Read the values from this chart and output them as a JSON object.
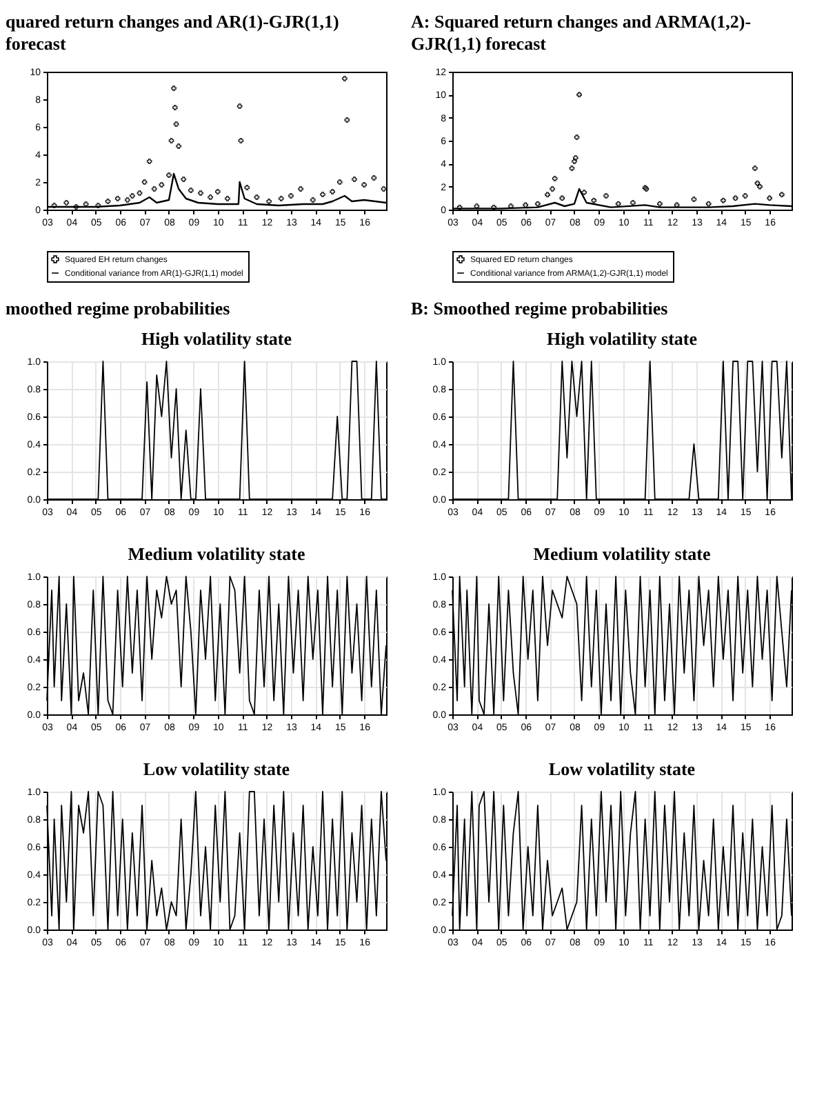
{
  "chart_data": [
    {
      "type": "line",
      "title": "quared return changes and AR(1)-GJR(1,1) forecast",
      "xlim": [
        2003,
        2016.9
      ],
      "xticks": [
        {
          "value": 2003,
          "label": "03"
        },
        {
          "value": 2004,
          "label": "04"
        },
        {
          "value": 2005,
          "label": "05"
        },
        {
          "value": 2006,
          "label": "06"
        },
        {
          "value": 2007,
          "label": "07"
        },
        {
          "value": 2008,
          "label": "08"
        },
        {
          "value": 2009,
          "label": "09"
        },
        {
          "value": 2010,
          "label": "10"
        },
        {
          "value": 2011,
          "label": "11"
        },
        {
          "value": 2012,
          "label": "12"
        },
        {
          "value": 2013,
          "label": "13"
        },
        {
          "value": 2014,
          "label": "14"
        },
        {
          "value": 2015,
          "label": "15"
        },
        {
          "value": 2016,
          "label": "16"
        }
      ],
      "ylim": [
        0,
        10
      ],
      "yticks": [
        0,
        2,
        4,
        6,
        8,
        10
      ],
      "legend": "bottom",
      "series": [
        {
          "name": "Squared EH return changes",
          "type": "scatter",
          "marker": "cross",
          "color": "#000000",
          "x": [
            2003.3,
            2003.8,
            2004.2,
            2004.6,
            2005.1,
            2005.5,
            2005.9,
            2006.3,
            2006.5,
            2006.8,
            2007.0,
            2007.2,
            2007.4,
            2007.7,
            2008.0,
            2008.1,
            2008.2,
            2008.25,
            2008.3,
            2008.4,
            2008.6,
            2008.9,
            2009.3,
            2009.7,
            2010.0,
            2010.4,
            2010.9,
            2010.95,
            2011.2,
            2011.6,
            2012.1,
            2012.6,
            2013.0,
            2013.4,
            2013.9,
            2014.3,
            2014.7,
            2015.0,
            2015.2,
            2015.3,
            2015.6,
            2016.0,
            2016.4,
            2016.8
          ],
          "values": [
            0.3,
            0.5,
            0.2,
            0.4,
            0.3,
            0.6,
            0.8,
            0.7,
            1.0,
            1.2,
            2.0,
            3.5,
            1.5,
            1.8,
            2.5,
            5.0,
            8.8,
            7.4,
            6.2,
            4.6,
            2.2,
            1.4,
            1.2,
            0.9,
            1.3,
            0.8,
            7.5,
            5.0,
            1.6,
            0.9,
            0.6,
            0.8,
            1.0,
            1.5,
            0.7,
            1.1,
            1.3,
            2.0,
            9.5,
            6.5,
            2.2,
            1.8,
            2.3,
            1.5
          ]
        },
        {
          "name": "Conditional variance from AR(1)-GJR(1,1) model",
          "type": "line",
          "color": "#000000",
          "x": [
            2003.0,
            2004.0,
            2005.0,
            2006.0,
            2006.8,
            2007.2,
            2007.5,
            2008.0,
            2008.2,
            2008.4,
            2008.7,
            2009.2,
            2010.0,
            2010.85,
            2010.9,
            2011.1,
            2011.6,
            2012.5,
            2013.5,
            2014.3,
            2014.7,
            2015.2,
            2015.5,
            2016.0,
            2016.9
          ],
          "values": [
            0.2,
            0.2,
            0.2,
            0.3,
            0.5,
            0.9,
            0.5,
            0.7,
            2.6,
            1.5,
            0.8,
            0.5,
            0.4,
            0.4,
            2.0,
            0.8,
            0.4,
            0.3,
            0.4,
            0.4,
            0.6,
            1.0,
            0.6,
            0.7,
            0.5
          ]
        }
      ]
    },
    {
      "type": "line",
      "title": "moothed regime probabilities",
      "subtitle": "High volatility state",
      "xlim": [
        2003,
        2016.9
      ],
      "xticks": [
        {
          "value": 2003,
          "label": "03"
        },
        {
          "value": 2004,
          "label": "04"
        },
        {
          "value": 2005,
          "label": "05"
        },
        {
          "value": 2006,
          "label": "06"
        },
        {
          "value": 2007,
          "label": "07"
        },
        {
          "value": 2008,
          "label": "08"
        },
        {
          "value": 2009,
          "label": "09"
        },
        {
          "value": 2010,
          "label": "10"
        },
        {
          "value": 2011,
          "label": "11"
        },
        {
          "value": 2012,
          "label": "12"
        },
        {
          "value": 2013,
          "label": "13"
        },
        {
          "value": 2014,
          "label": "14"
        },
        {
          "value": 2015,
          "label": "15"
        },
        {
          "value": 2016,
          "label": "16"
        }
      ],
      "ylim": [
        0,
        1
      ],
      "yticks": [
        {
          "value": 0,
          "label": "0.0"
        },
        {
          "value": 0.2,
          "label": "0.2"
        },
        {
          "value": 0.4,
          "label": "0.4"
        },
        {
          "value": 0.6,
          "label": "0.6"
        },
        {
          "value": 0.8,
          "label": "0.8"
        },
        {
          "value": 1,
          "label": "1.0"
        }
      ],
      "grid": true,
      "color": "#000000",
      "x": [
        2003.0,
        2003.2,
        2003.3,
        2003.5,
        2003.6,
        2003.8,
        2004.0,
        2004.1,
        2004.3,
        2004.5,
        2004.7,
        2004.9,
        2005.1,
        2005.3,
        2005.5,
        2005.7,
        2005.9,
        2006.1,
        2006.3,
        2006.5,
        2006.7,
        2006.9,
        2007.1,
        2007.3,
        2007.5,
        2007.7,
        2007.9,
        2008.1,
        2008.3,
        2008.5,
        2008.7,
        2008.9,
        2009.1,
        2009.3,
        2009.5,
        2009.7,
        2009.9,
        2010.1,
        2010.3,
        2010.5,
        2010.7,
        2010.9,
        2011.1,
        2011.3,
        2011.5,
        2011.7,
        2011.9,
        2012.1,
        2012.3,
        2012.5,
        2012.7,
        2012.9,
        2013.1,
        2013.3,
        2013.5,
        2013.7,
        2013.9,
        2014.1,
        2014.3,
        2014.5,
        2014.7,
        2014.9,
        2015.1,
        2015.3,
        2015.5,
        2015.7,
        2015.9,
        2016.1,
        2016.3,
        2016.5,
        2016.7,
        2016.9
      ],
      "values": [
        0,
        0,
        0,
        0,
        0,
        0,
        0,
        0,
        0,
        0,
        0,
        0,
        0,
        1.0,
        0,
        0,
        0,
        0,
        0,
        0,
        0,
        0,
        0.85,
        0,
        0.9,
        0.6,
        1.0,
        0.3,
        0.8,
        0,
        0.5,
        0,
        0,
        0.8,
        0,
        0,
        0,
        0,
        0,
        0,
        0,
        0,
        1.0,
        0,
        0,
        0,
        0,
        0,
        0,
        0,
        0,
        0,
        0,
        0,
        0,
        0,
        0,
        0,
        0,
        0,
        0,
        0.6,
        0,
        0,
        1.0,
        1.0,
        0,
        0,
        0,
        1.0,
        0,
        0
      ]
    },
    {
      "type": "line",
      "title": "Medium volatility state",
      "xlim": [
        2003,
        2016.9
      ],
      "xticks": [
        {
          "value": 2003,
          "label": "03"
        },
        {
          "value": 2004,
          "label": "04"
        },
        {
          "value": 2005,
          "label": "05"
        },
        {
          "value": 2006,
          "label": "06"
        },
        {
          "value": 2007,
          "label": "07"
        },
        {
          "value": 2008,
          "label": "08"
        },
        {
          "value": 2009,
          "label": "09"
        },
        {
          "value": 2010,
          "label": "10"
        },
        {
          "value": 2011,
          "label": "11"
        },
        {
          "value": 2012,
          "label": "12"
        },
        {
          "value": 2013,
          "label": "13"
        },
        {
          "value": 2014,
          "label": "14"
        },
        {
          "value": 2015,
          "label": "15"
        },
        {
          "value": 2016,
          "label": "16"
        }
      ],
      "ylim": [
        0,
        1
      ],
      "yticks": [
        {
          "value": 0,
          "label": "0.0"
        },
        {
          "value": 0.2,
          "label": "0.2"
        },
        {
          "value": 0.4,
          "label": "0.4"
        },
        {
          "value": 0.6,
          "label": "0.6"
        },
        {
          "value": 0.8,
          "label": "0.8"
        },
        {
          "value": 1,
          "label": "1.0"
        }
      ],
      "grid": true,
      "color": "#000000",
      "x": [
        2003.0,
        2003.2,
        2003.3,
        2003.5,
        2003.6,
        2003.8,
        2004.0,
        2004.1,
        2004.3,
        2004.5,
        2004.7,
        2004.9,
        2005.1,
        2005.3,
        2005.5,
        2005.7,
        2005.9,
        2006.1,
        2006.3,
        2006.5,
        2006.7,
        2006.9,
        2007.1,
        2007.3,
        2007.5,
        2007.7,
        2007.9,
        2008.1,
        2008.3,
        2008.5,
        2008.7,
        2008.9,
        2009.1,
        2009.3,
        2009.5,
        2009.7,
        2009.9,
        2010.1,
        2010.3,
        2010.5,
        2010.7,
        2010.9,
        2011.1,
        2011.3,
        2011.5,
        2011.7,
        2011.9,
        2012.1,
        2012.3,
        2012.5,
        2012.7,
        2012.9,
        2013.1,
        2013.3,
        2013.5,
        2013.7,
        2013.9,
        2014.1,
        2014.3,
        2014.5,
        2014.7,
        2014.9,
        2015.1,
        2015.3,
        2015.5,
        2015.7,
        2015.9,
        2016.1,
        2016.3,
        2016.5,
        2016.7,
        2016.9
      ],
      "values": [
        0.1,
        0.9,
        0.2,
        1.0,
        0.1,
        0.8,
        0,
        1.0,
        0.1,
        0.3,
        0,
        0.9,
        0,
        1.0,
        0.1,
        0,
        0.9,
        0.2,
        1.0,
        0.3,
        0.9,
        0.1,
        1.0,
        0.4,
        0.9,
        0.7,
        1.0,
        0.8,
        0.9,
        0.2,
        1.0,
        0.6,
        0,
        0.9,
        0.4,
        1.0,
        0.1,
        0.8,
        0,
        1.0,
        0.9,
        0.3,
        1.0,
        0.1,
        0,
        0.9,
        0.2,
        1.0,
        0.1,
        0.8,
        0,
        1.0,
        0.3,
        0.9,
        0.1,
        1.0,
        0.4,
        0.9,
        0,
        1.0,
        0.2,
        0.9,
        0,
        1.0,
        0.3,
        0.8,
        0.1,
        1.0,
        0.2,
        0.9,
        0,
        0.5
      ]
    },
    {
      "type": "line",
      "title": "Low volatility state",
      "xlim": [
        2003,
        2016.9
      ],
      "xticks": [
        {
          "value": 2003,
          "label": "03"
        },
        {
          "value": 2004,
          "label": "04"
        },
        {
          "value": 2005,
          "label": "05"
        },
        {
          "value": 2006,
          "label": "06"
        },
        {
          "value": 2007,
          "label": "07"
        },
        {
          "value": 2008,
          "label": "08"
        },
        {
          "value": 2009,
          "label": "09"
        },
        {
          "value": 2010,
          "label": "10"
        },
        {
          "value": 2011,
          "label": "11"
        },
        {
          "value": 2012,
          "label": "12"
        },
        {
          "value": 2013,
          "label": "13"
        },
        {
          "value": 2014,
          "label": "14"
        },
        {
          "value": 2015,
          "label": "15"
        },
        {
          "value": 2016,
          "label": "16"
        }
      ],
      "ylim": [
        0,
        1
      ],
      "yticks": [
        {
          "value": 0,
          "label": "0.0"
        },
        {
          "value": 0.2,
          "label": "0.2"
        },
        {
          "value": 0.4,
          "label": "0.4"
        },
        {
          "value": 0.6,
          "label": "0.6"
        },
        {
          "value": 0.8,
          "label": "0.8"
        },
        {
          "value": 1,
          "label": "1.0"
        }
      ],
      "grid": true,
      "color": "#000000",
      "x": [
        2003.0,
        2003.2,
        2003.3,
        2003.5,
        2003.6,
        2003.8,
        2004.0,
        2004.1,
        2004.3,
        2004.5,
        2004.7,
        2004.9,
        2005.1,
        2005.3,
        2005.5,
        2005.7,
        2005.9,
        2006.1,
        2006.3,
        2006.5,
        2006.7,
        2006.9,
        2007.1,
        2007.3,
        2007.5,
        2007.7,
        2007.9,
        2008.1,
        2008.3,
        2008.5,
        2008.7,
        2008.9,
        2009.1,
        2009.3,
        2009.5,
        2009.7,
        2009.9,
        2010.1,
        2010.3,
        2010.5,
        2010.7,
        2010.9,
        2011.1,
        2011.3,
        2011.5,
        2011.7,
        2011.9,
        2012.1,
        2012.3,
        2012.5,
        2012.7,
        2012.9,
        2013.1,
        2013.3,
        2013.5,
        2013.7,
        2013.9,
        2014.1,
        2014.3,
        2014.5,
        2014.7,
        2014.9,
        2015.1,
        2015.3,
        2015.5,
        2015.7,
        2015.9,
        2016.1,
        2016.3,
        2016.5,
        2016.7,
        2016.9
      ],
      "values": [
        0.9,
        0.1,
        0.8,
        0,
        0.9,
        0.2,
        1.0,
        0,
        0.9,
        0.7,
        1.0,
        0.1,
        1.0,
        0.9,
        0,
        1.0,
        0.1,
        0.8,
        0,
        0.7,
        0.1,
        0.9,
        0,
        0.5,
        0.1,
        0.3,
        0,
        0.2,
        0.1,
        0.8,
        0,
        0.4,
        1.0,
        0.1,
        0.6,
        0,
        0.9,
        0.2,
        1.0,
        0,
        0.1,
        0.7,
        0,
        1.0,
        1.0,
        0.1,
        0.8,
        0,
        0.9,
        0.2,
        1.0,
        0,
        0.7,
        0.1,
        0.9,
        0,
        0.6,
        0.1,
        1.0,
        0,
        0.8,
        0.1,
        1.0,
        0,
        0.7,
        0.2,
        0.9,
        0,
        0.8,
        0.1,
        1.0,
        0.5
      ]
    },
    {
      "type": "line",
      "title": "A: Squared return changes and ARMA(1,2)-GJR(1,1) forecast",
      "xlim": [
        2003,
        2016.9
      ],
      "xticks": [
        {
          "value": 2003,
          "label": "03"
        },
        {
          "value": 2004,
          "label": "04"
        },
        {
          "value": 2005,
          "label": "05"
        },
        {
          "value": 2006,
          "label": "06"
        },
        {
          "value": 2007,
          "label": "07"
        },
        {
          "value": 2008,
          "label": "08"
        },
        {
          "value": 2009,
          "label": "09"
        },
        {
          "value": 2010,
          "label": "10"
        },
        {
          "value": 2011,
          "label": "11"
        },
        {
          "value": 2012,
          "label": "12"
        },
        {
          "value": 2013,
          "label": "13"
        },
        {
          "value": 2014,
          "label": "14"
        },
        {
          "value": 2015,
          "label": "15"
        },
        {
          "value": 2016,
          "label": "16"
        }
      ],
      "ylim": [
        0,
        12
      ],
      "yticks": [
        0,
        2,
        4,
        6,
        8,
        10,
        12
      ],
      "legend": "bottom",
      "series": [
        {
          "name": "Squared ED return changes",
          "type": "scatter",
          "marker": "cross",
          "color": "#000000",
          "x": [
            2003.3,
            2004.0,
            2004.7,
            2005.4,
            2006.0,
            2006.5,
            2006.9,
            2007.1,
            2007.2,
            2007.5,
            2007.9,
            2008.0,
            2008.05,
            2008.1,
            2008.2,
            2008.4,
            2008.8,
            2009.3,
            2009.8,
            2010.4,
            2010.9,
            2010.95,
            2011.5,
            2012.2,
            2012.9,
            2013.5,
            2014.1,
            2014.6,
            2015.0,
            2015.4,
            2015.5,
            2015.6,
            2016.0,
            2016.5
          ],
          "values": [
            0.2,
            0.3,
            0.2,
            0.3,
            0.4,
            0.5,
            1.3,
            1.8,
            2.7,
            1.0,
            3.6,
            4.2,
            4.5,
            6.3,
            10.0,
            1.5,
            0.8,
            1.2,
            0.5,
            0.6,
            1.9,
            1.8,
            0.5,
            0.4,
            0.9,
            0.5,
            0.8,
            1.0,
            1.2,
            3.6,
            2.3,
            2.0,
            1.0,
            1.3
          ]
        },
        {
          "name": "Conditional variance from ARMA(1,2)-GJR(1,1) model",
          "type": "line",
          "color": "#000000",
          "x": [
            2003.0,
            2005.0,
            2006.5,
            2007.2,
            2007.6,
            2008.0,
            2008.2,
            2008.5,
            2009.5,
            2010.9,
            2011.5,
            2013.5,
            2014.5,
            2015.4,
            2016.0,
            2016.9
          ],
          "values": [
            0.1,
            0.1,
            0.2,
            0.6,
            0.3,
            0.5,
            1.8,
            0.6,
            0.2,
            0.4,
            0.2,
            0.2,
            0.3,
            0.5,
            0.4,
            0.3
          ]
        }
      ]
    },
    {
      "type": "line",
      "title": "B: Smoothed regime probabilities",
      "subtitle": "High volatility state",
      "xlim": [
        2003,
        2016.9
      ],
      "xticks": [
        {
          "value": 2003,
          "label": "03"
        },
        {
          "value": 2004,
          "label": "04"
        },
        {
          "value": 2005,
          "label": "05"
        },
        {
          "value": 2006,
          "label": "06"
        },
        {
          "value": 2007,
          "label": "07"
        },
        {
          "value": 2008,
          "label": "08"
        },
        {
          "value": 2009,
          "label": "09"
        },
        {
          "value": 2010,
          "label": "10"
        },
        {
          "value": 2011,
          "label": "11"
        },
        {
          "value": 2012,
          "label": "12"
        },
        {
          "value": 2013,
          "label": "13"
        },
        {
          "value": 2014,
          "label": "14"
        },
        {
          "value": 2015,
          "label": "15"
        },
        {
          "value": 2016,
          "label": "16"
        }
      ],
      "ylim": [
        0,
        1
      ],
      "yticks": [
        {
          "value": 0,
          "label": "0.0"
        },
        {
          "value": 0.2,
          "label": "0.2"
        },
        {
          "value": 0.4,
          "label": "0.4"
        },
        {
          "value": 0.6,
          "label": "0.6"
        },
        {
          "value": 0.8,
          "label": "0.8"
        },
        {
          "value": 1,
          "label": "1.0"
        }
      ],
      "grid": true,
      "color": "#000000",
      "x": [
        2003.0,
        2003.2,
        2003.3,
        2003.5,
        2003.6,
        2003.8,
        2004.0,
        2004.1,
        2004.3,
        2004.5,
        2004.7,
        2004.9,
        2005.1,
        2005.3,
        2005.5,
        2005.7,
        2005.9,
        2006.1,
        2006.3,
        2006.5,
        2006.7,
        2006.9,
        2007.1,
        2007.3,
        2007.5,
        2007.7,
        2007.9,
        2008.1,
        2008.3,
        2008.5,
        2008.7,
        2008.9,
        2009.1,
        2009.3,
        2009.5,
        2009.7,
        2009.9,
        2010.1,
        2010.3,
        2010.5,
        2010.7,
        2010.9,
        2011.1,
        2011.3,
        2011.5,
        2011.7,
        2011.9,
        2012.1,
        2012.3,
        2012.5,
        2012.7,
        2012.9,
        2013.1,
        2013.3,
        2013.5,
        2013.7,
        2013.9,
        2014.1,
        2014.3,
        2014.5,
        2014.7,
        2014.9,
        2015.1,
        2015.3,
        2015.5,
        2015.7,
        2015.9,
        2016.1,
        2016.3,
        2016.5,
        2016.7,
        2016.9
      ],
      "values": [
        0,
        0,
        0,
        0,
        0,
        0,
        0,
        0,
        0,
        0,
        0,
        0,
        0,
        0,
        1.0,
        0,
        0,
        0,
        0,
        0,
        0,
        0,
        0,
        0,
        1.0,
        0.3,
        1.0,
        0.6,
        1.0,
        0,
        1.0,
        0,
        0,
        0,
        0,
        0,
        0,
        0,
        0,
        0,
        0,
        0,
        1.0,
        0,
        0,
        0,
        0,
        0,
        0,
        0,
        0,
        0.4,
        0,
        0,
        0,
        0,
        0,
        1.0,
        0,
        1.0,
        1.0,
        0,
        1.0,
        1.0,
        0.2,
        1.0,
        0,
        1.0,
        1.0,
        0.3,
        1.0,
        0
      ]
    },
    {
      "type": "line",
      "title": "Medium volatility state",
      "xlim": [
        2003,
        2016.9
      ],
      "xticks": [
        {
          "value": 2003,
          "label": "03"
        },
        {
          "value": 2004,
          "label": "04"
        },
        {
          "value": 2005,
          "label": "05"
        },
        {
          "value": 2006,
          "label": "06"
        },
        {
          "value": 2007,
          "label": "07"
        },
        {
          "value": 2008,
          "label": "08"
        },
        {
          "value": 2009,
          "label": "09"
        },
        {
          "value": 2010,
          "label": "10"
        },
        {
          "value": 2011,
          "label": "11"
        },
        {
          "value": 2012,
          "label": "12"
        },
        {
          "value": 2013,
          "label": "13"
        },
        {
          "value": 2014,
          "label": "14"
        },
        {
          "value": 2015,
          "label": "15"
        },
        {
          "value": 2016,
          "label": "16"
        }
      ],
      "ylim": [
        0,
        1
      ],
      "yticks": [
        {
          "value": 0,
          "label": "0.0"
        },
        {
          "value": 0.2,
          "label": "0.2"
        },
        {
          "value": 0.4,
          "label": "0.4"
        },
        {
          "value": 0.6,
          "label": "0.6"
        },
        {
          "value": 0.8,
          "label": "0.8"
        },
        {
          "value": 1,
          "label": "1.0"
        }
      ],
      "grid": true,
      "color": "#000000",
      "x": [
        2003.0,
        2003.2,
        2003.3,
        2003.5,
        2003.6,
        2003.8,
        2004.0,
        2004.1,
        2004.3,
        2004.5,
        2004.7,
        2004.9,
        2005.1,
        2005.3,
        2005.5,
        2005.7,
        2005.9,
        2006.1,
        2006.3,
        2006.5,
        2006.7,
        2006.9,
        2007.1,
        2007.3,
        2007.5,
        2007.7,
        2007.9,
        2008.1,
        2008.3,
        2008.5,
        2008.7,
        2008.9,
        2009.1,
        2009.3,
        2009.5,
        2009.7,
        2009.9,
        2010.1,
        2010.3,
        2010.5,
        2010.7,
        2010.9,
        2011.1,
        2011.3,
        2011.5,
        2011.7,
        2011.9,
        2012.1,
        2012.3,
        2012.5,
        2012.7,
        2012.9,
        2013.1,
        2013.3,
        2013.5,
        2013.7,
        2013.9,
        2014.1,
        2014.3,
        2014.5,
        2014.7,
        2014.9,
        2015.1,
        2015.3,
        2015.5,
        2015.7,
        2015.9,
        2016.1,
        2016.3,
        2016.5,
        2016.7,
        2016.9
      ],
      "values": [
        0.9,
        0.1,
        1.0,
        0.2,
        0.9,
        0,
        1.0,
        0.1,
        0,
        0.8,
        0,
        1.0,
        0.1,
        0.9,
        0.3,
        0,
        1.0,
        0.4,
        0.9,
        0.1,
        1.0,
        0.5,
        0.9,
        0.8,
        0.7,
        1.0,
        0.9,
        0.8,
        0.1,
        1.0,
        0.2,
        0.9,
        0,
        0.8,
        0.1,
        1.0,
        0,
        0.9,
        0.3,
        0,
        1.0,
        0.2,
        0.9,
        0,
        1.0,
        0.1,
        0.8,
        0,
        1.0,
        0.3,
        0.9,
        0.1,
        1.0,
        0.5,
        0.9,
        0.2,
        1.0,
        0.4,
        0.9,
        0.1,
        1.0,
        0.3,
        0.9,
        0.2,
        1.0,
        0.4,
        0.9,
        0.1,
        1.0,
        0.6,
        0.2,
        0.9
      ]
    },
    {
      "type": "line",
      "title": "Low volatility state",
      "xlim": [
        2003,
        2016.9
      ],
      "xticks": [
        {
          "value": 2003,
          "label": "03"
        },
        {
          "value": 2004,
          "label": "04"
        },
        {
          "value": 2005,
          "label": "05"
        },
        {
          "value": 2006,
          "label": "06"
        },
        {
          "value": 2007,
          "label": "07"
        },
        {
          "value": 2008,
          "label": "08"
        },
        {
          "value": 2009,
          "label": "09"
        },
        {
          "value": 2010,
          "label": "10"
        },
        {
          "value": 2011,
          "label": "11"
        },
        {
          "value": 2012,
          "label": "12"
        },
        {
          "value": 2013,
          "label": "13"
        },
        {
          "value": 2014,
          "label": "14"
        },
        {
          "value": 2015,
          "label": "15"
        },
        {
          "value": 2016,
          "label": "16"
        }
      ],
      "ylim": [
        0,
        1
      ],
      "yticks": [
        {
          "value": 0,
          "label": "0.0"
        },
        {
          "value": 0.2,
          "label": "0.2"
        },
        {
          "value": 0.4,
          "label": "0.4"
        },
        {
          "value": 0.6,
          "label": "0.6"
        },
        {
          "value": 0.8,
          "label": "0.8"
        },
        {
          "value": 1,
          "label": "1.0"
        }
      ],
      "grid": true,
      "color": "#000000",
      "x": [
        2003.0,
        2003.2,
        2003.3,
        2003.5,
        2003.6,
        2003.8,
        2004.0,
        2004.1,
        2004.3,
        2004.5,
        2004.7,
        2004.9,
        2005.1,
        2005.3,
        2005.5,
        2005.7,
        2005.9,
        2006.1,
        2006.3,
        2006.5,
        2006.7,
        2006.9,
        2007.1,
        2007.3,
        2007.5,
        2007.7,
        2007.9,
        2008.1,
        2008.3,
        2008.5,
        2008.7,
        2008.9,
        2009.1,
        2009.3,
        2009.5,
        2009.7,
        2009.9,
        2010.1,
        2010.3,
        2010.5,
        2010.7,
        2010.9,
        2011.1,
        2011.3,
        2011.5,
        2011.7,
        2011.9,
        2012.1,
        2012.3,
        2012.5,
        2012.7,
        2012.9,
        2013.1,
        2013.3,
        2013.5,
        2013.7,
        2013.9,
        2014.1,
        2014.3,
        2014.5,
        2014.7,
        2014.9,
        2015.1,
        2015.3,
        2015.5,
        2015.7,
        2015.9,
        2016.1,
        2016.3,
        2016.5,
        2016.7,
        2016.9
      ],
      "values": [
        0.1,
        0.9,
        0,
        0.8,
        0.1,
        1.0,
        0,
        0.9,
        1.0,
        0.2,
        1.0,
        0,
        0.9,
        0.1,
        0.7,
        1.0,
        0,
        0.6,
        0.1,
        0.9,
        0,
        0.5,
        0.1,
        0.2,
        0.3,
        0,
        0.1,
        0.2,
        0.9,
        0,
        0.8,
        0.1,
        1.0,
        0.2,
        0.9,
        0,
        1.0,
        0.1,
        0.7,
        1.0,
        0,
        0.8,
        0.1,
        1.0,
        0,
        0.9,
        0.2,
        1.0,
        0,
        0.7,
        0.1,
        0.9,
        0,
        0.5,
        0.1,
        0.8,
        0,
        0.6,
        0.1,
        0.9,
        0,
        0.7,
        0.1,
        0.8,
        0,
        0.6,
        0.1,
        0.9,
        0,
        0.1,
        0.8,
        0.1
      ]
    }
  ]
}
